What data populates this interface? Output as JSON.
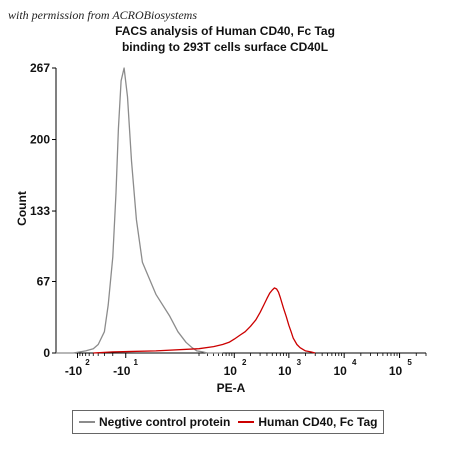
{
  "watermark": "with permission from ACROBiosystems",
  "chart_data": {
    "type": "line",
    "title": [
      "FACS analysis of Human CD40, Fc Tag",
      "binding to 293T cells surface CD40L"
    ],
    "xlabel": "PE-A",
    "ylabel": "Count",
    "xscale": "biexponential",
    "xlim": [
      -250,
      300000
    ],
    "ylim": [
      0,
      267
    ],
    "yticks": [
      0,
      67,
      133,
      200,
      267
    ],
    "xticks": [
      {
        "base": "-10",
        "exp": "2"
      },
      {
        "base": "-10",
        "exp": "1"
      },
      {
        "base": "10",
        "exp": "2"
      },
      {
        "base": "10",
        "exp": "3"
      },
      {
        "base": "10",
        "exp": "4"
      },
      {
        "base": "10",
        "exp": "5"
      }
    ],
    "legend_position": "bottom",
    "series": [
      {
        "name": "Negtive control protein",
        "color": "#8c8c8c",
        "x": [
          -250,
          -120,
          -70,
          -50,
          -40,
          -30,
          -25,
          -20,
          -17,
          -15,
          -13,
          -11,
          -9,
          -7,
          -5,
          -3,
          0,
          3,
          6,
          10,
          14,
          18,
          24,
          30,
          40,
          60
        ],
        "y": [
          0,
          0,
          2,
          4,
          8,
          20,
          45,
          90,
          150,
          210,
          255,
          267,
          240,
          180,
          125,
          85,
          55,
          35,
          20,
          10,
          5,
          2,
          1,
          0,
          0,
          0
        ]
      },
      {
        "name": "Human CD40, Fc Tag",
        "color": "#cc0000",
        "x": [
          -50,
          -20,
          0,
          20,
          40,
          60,
          80,
          100,
          130,
          160,
          200,
          250,
          300,
          350,
          400,
          450,
          500,
          550,
          600,
          650,
          700,
          800,
          900,
          1000,
          1100,
          1200,
          1400,
          1600,
          2000,
          2500,
          3000
        ],
        "y": [
          0,
          1,
          2,
          4,
          6,
          8,
          10,
          13,
          17,
          20,
          25,
          31,
          38,
          45,
          51,
          56,
          59,
          61,
          60,
          57,
          52,
          42,
          34,
          26,
          20,
          14,
          8,
          5,
          2,
          1,
          0
        ]
      }
    ]
  }
}
